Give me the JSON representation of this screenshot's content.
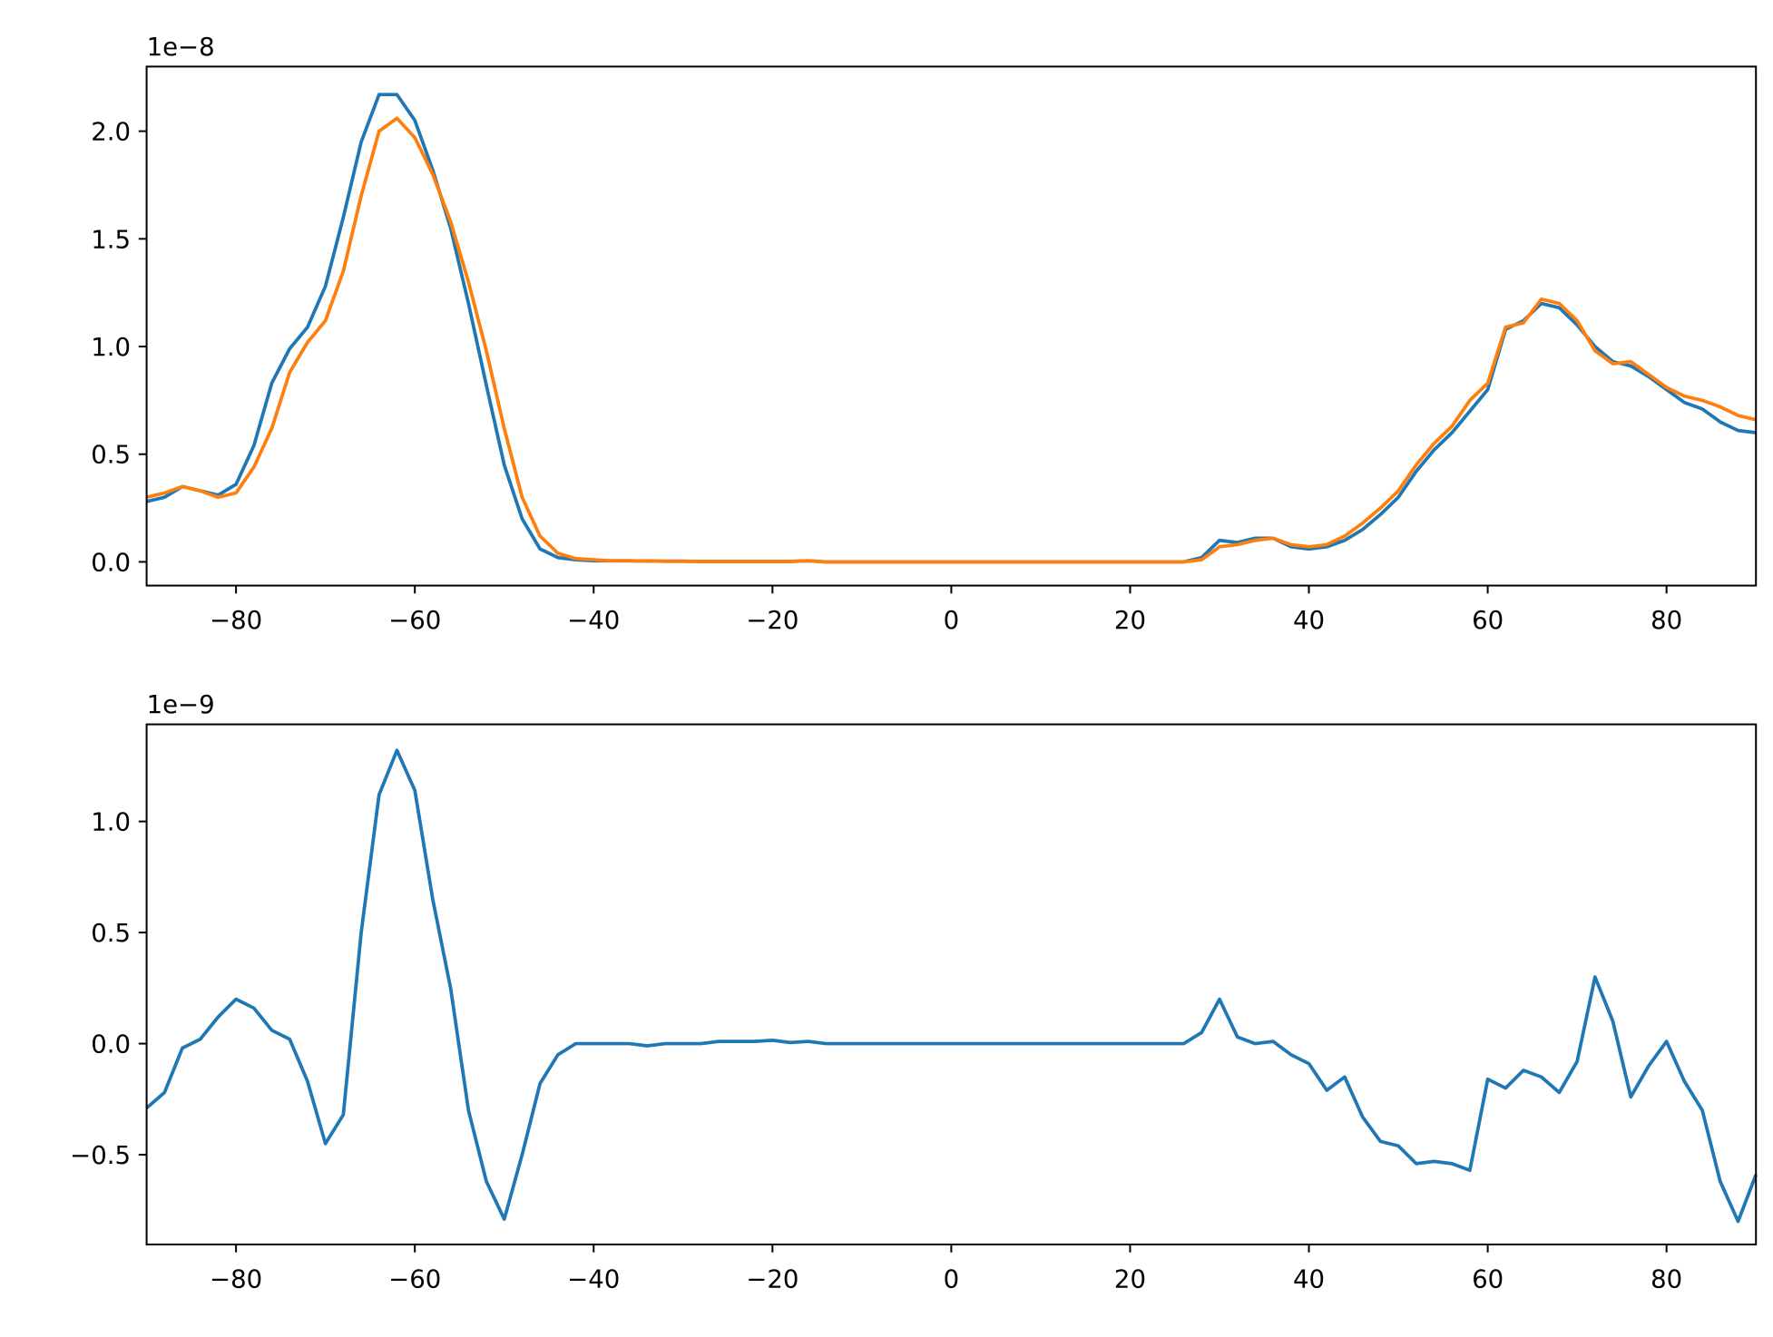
{
  "chart_data": [
    {
      "type": "line",
      "offset_text": "1e−8",
      "x": [
        -90,
        -88,
        -86,
        -84,
        -82,
        -80,
        -78,
        -76,
        -74,
        -72,
        -70,
        -68,
        -66,
        -64,
        -62,
        -60,
        -58,
        -56,
        -54,
        -52,
        -50,
        -48,
        -46,
        -44,
        -42,
        -40,
        -38,
        -36,
        -34,
        -32,
        -30,
        -28,
        -26,
        -24,
        -22,
        -20,
        -18,
        -16,
        -14,
        -12,
        -10,
        -8,
        -6,
        -4,
        -2,
        0,
        2,
        4,
        6,
        8,
        10,
        12,
        14,
        16,
        18,
        20,
        22,
        24,
        26,
        28,
        30,
        32,
        34,
        36,
        38,
        40,
        42,
        44,
        46,
        48,
        50,
        52,
        54,
        56,
        58,
        60,
        62,
        64,
        66,
        68,
        70,
        72,
        74,
        76,
        78,
        80,
        82,
        84,
        86,
        88,
        90
      ],
      "series": [
        {
          "color": "#1f77b4",
          "values": [
            0.28,
            0.3,
            0.35,
            0.33,
            0.31,
            0.36,
            0.54,
            0.83,
            0.99,
            1.09,
            1.28,
            1.6,
            1.95,
            2.17,
            2.17,
            2.05,
            1.82,
            1.55,
            1.2,
            0.82,
            0.45,
            0.2,
            0.06,
            0.02,
            0.01,
            0.005,
            0.005,
            0.005,
            0.004,
            0.003,
            0.003,
            0.002,
            0.002,
            0.002,
            0.002,
            0.002,
            0.002,
            0.005,
            0,
            0,
            0,
            0,
            0,
            0,
            0,
            0,
            0,
            0,
            0,
            0,
            0,
            0,
            0,
            0,
            0,
            0,
            0,
            0,
            0,
            0.02,
            0.1,
            0.09,
            0.11,
            0.11,
            0.07,
            0.06,
            0.07,
            0.1,
            0.15,
            0.22,
            0.3,
            0.42,
            0.52,
            0.6,
            0.7,
            0.8,
            1.08,
            1.12,
            1.2,
            1.18,
            1.1,
            1.0,
            0.93,
            0.91,
            0.86,
            0.8,
            0.74,
            0.71,
            0.65,
            0.61,
            0.6
          ]
        },
        {
          "color": "#ff7f0e",
          "values": [
            0.3,
            0.32,
            0.35,
            0.33,
            0.3,
            0.32,
            0.44,
            0.62,
            0.88,
            1.02,
            1.12,
            1.35,
            1.7,
            2.0,
            2.06,
            1.97,
            1.8,
            1.58,
            1.3,
            0.98,
            0.62,
            0.3,
            0.12,
            0.04,
            0.015,
            0.01,
            0.005,
            0.005,
            0.004,
            0.003,
            0.003,
            0.002,
            0.002,
            0.002,
            0.002,
            0.002,
            0.002,
            0.005,
            0,
            0,
            0,
            0,
            0,
            0,
            0,
            0,
            0,
            0,
            0,
            0,
            0,
            0,
            0,
            0,
            0,
            0,
            0,
            0,
            0,
            0.01,
            0.07,
            0.08,
            0.1,
            0.11,
            0.08,
            0.07,
            0.08,
            0.12,
            0.18,
            0.25,
            0.33,
            0.45,
            0.55,
            0.63,
            0.75,
            0.83,
            1.09,
            1.11,
            1.22,
            1.2,
            1.12,
            0.98,
            0.92,
            0.93,
            0.87,
            0.81,
            0.77,
            0.75,
            0.72,
            0.68,
            0.66
          ]
        }
      ],
      "xlim": [
        -90,
        90
      ],
      "ylim": [
        -0.11,
        2.3
      ],
      "xticks": [
        {
          "value": -80,
          "label": "−80"
        },
        {
          "value": -60,
          "label": "−60"
        },
        {
          "value": -40,
          "label": "−40"
        },
        {
          "value": -20,
          "label": "−20"
        },
        0,
        20,
        40,
        60,
        80
      ],
      "yticks": [
        {
          "value": 0,
          "label": "0.0"
        },
        0.5,
        {
          "value": 1,
          "label": "1.0"
        },
        1.5,
        {
          "value": 2,
          "label": "2.0"
        }
      ]
    },
    {
      "type": "line",
      "offset_text": "1e−9",
      "x": [
        -90,
        -88,
        -86,
        -84,
        -82,
        -80,
        -78,
        -76,
        -74,
        -72,
        -70,
        -68,
        -66,
        -64,
        -62,
        -60,
        -58,
        -56,
        -54,
        -52,
        -50,
        -48,
        -46,
        -44,
        -42,
        -40,
        -38,
        -36,
        -34,
        -32,
        -30,
        -28,
        -26,
        -24,
        -22,
        -20,
        -18,
        -16,
        -14,
        -12,
        -10,
        -8,
        -6,
        -4,
        -2,
        0,
        2,
        4,
        6,
        8,
        10,
        12,
        14,
        16,
        18,
        20,
        22,
        24,
        26,
        28,
        30,
        32,
        34,
        36,
        38,
        40,
        42,
        44,
        46,
        48,
        50,
        52,
        54,
        56,
        58,
        60,
        62,
        64,
        66,
        68,
        70,
        72,
        74,
        76,
        78,
        80,
        82,
        84,
        86,
        88,
        90
      ],
      "series": [
        {
          "color": "#1f77b4",
          "values": [
            -0.29,
            -0.22,
            -0.02,
            0.02,
            0.12,
            0.2,
            0.16,
            0.06,
            0.02,
            -0.17,
            -0.45,
            -0.32,
            0.5,
            1.12,
            1.32,
            1.14,
            0.65,
            0.25,
            -0.3,
            -0.62,
            -0.79,
            -0.5,
            -0.18,
            -0.05,
            0,
            0,
            0,
            0,
            -0.01,
            0,
            0,
            0,
            0.01,
            0.01,
            0.01,
            0.015,
            0.005,
            0.01,
            0,
            0,
            0,
            0,
            0,
            0,
            0,
            0,
            0,
            0,
            0,
            0,
            0,
            0,
            0,
            0,
            0,
            0,
            0,
            0,
            0,
            0.05,
            0.2,
            0.03,
            0,
            0.01,
            -0.05,
            -0.09,
            -0.21,
            -0.15,
            -0.33,
            -0.44,
            -0.46,
            -0.54,
            -0.53,
            -0.54,
            -0.57,
            -0.16,
            -0.2,
            -0.12,
            -0.15,
            -0.22,
            -0.08,
            0.3,
            0.1,
            -0.24,
            -0.1,
            0.01,
            -0.17,
            -0.3,
            -0.62,
            -0.8,
            -0.59
          ]
        }
      ],
      "xlim": [
        -90,
        90
      ],
      "ylim": [
        -0.904,
        1.437
      ],
      "xticks": [
        {
          "value": -80,
          "label": "−80"
        },
        {
          "value": -60,
          "label": "−60"
        },
        {
          "value": -40,
          "label": "−40"
        },
        {
          "value": -20,
          "label": "−20"
        },
        0,
        20,
        40,
        60,
        80
      ],
      "yticks": [
        {
          "value": -0.5,
          "label": "−0.5"
        },
        {
          "value": 0,
          "label": "0.0"
        },
        0.5,
        {
          "value": 1,
          "label": "1.0"
        }
      ]
    }
  ]
}
